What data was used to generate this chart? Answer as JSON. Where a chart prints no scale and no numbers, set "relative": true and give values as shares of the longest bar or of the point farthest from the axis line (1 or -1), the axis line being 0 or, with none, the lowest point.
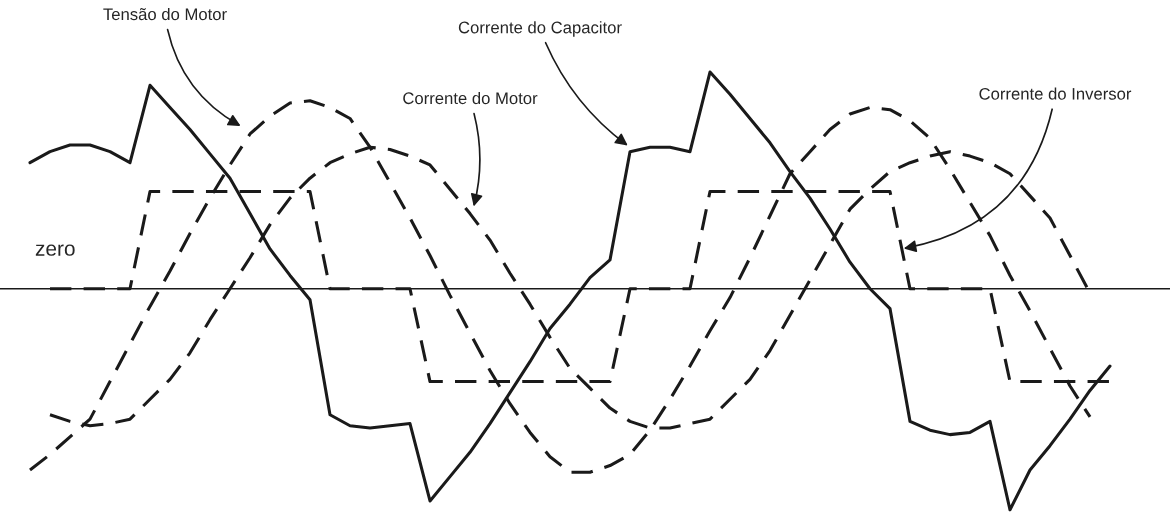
{
  "chart_data": {
    "type": "line",
    "relative": true,
    "categories": [
      null,
      null,
      null,
      null,
      null,
      null,
      null,
      null,
      null,
      null,
      null,
      null,
      null,
      null,
      null,
      null,
      null,
      null,
      null,
      null,
      null,
      null,
      null,
      null,
      null,
      null,
      null,
      null,
      null,
      null,
      null,
      null,
      null,
      null,
      null,
      null,
      null,
      null,
      null,
      null,
      null,
      null,
      null,
      null,
      null,
      null,
      null,
      null,
      null,
      null,
      null,
      null,
      null,
      null,
      null
    ],
    "series": [
      {
        "color": "#1a1a1a",
        "line_style": "solid",
        "values": [
          0.57,
          0.62,
          0.65,
          0.65,
          0.62,
          0.57,
          0.92,
          0.82,
          0.72,
          0.61,
          0.5,
          0.34,
          0.18,
          0.06,
          -0.05,
          -0.57,
          -0.62,
          -0.63,
          -0.62,
          -0.61,
          -0.96,
          -0.85,
          -0.74,
          -0.61,
          -0.47,
          -0.33,
          -0.18,
          -0.07,
          0.05,
          0.13,
          0.62,
          0.64,
          0.64,
          0.62,
          0.98,
          0.88,
          0.77,
          0.66,
          0.53,
          0.41,
          0.27,
          0.12,
          0,
          -0.09,
          -0.6,
          -0.64,
          -0.66,
          -0.65,
          -0.6,
          -1,
          -0.82,
          -0.71,
          -0.59,
          -0.46,
          -0.35
        ]
      },
      {
        "color": "#1a1a1a",
        "line_style": "dashed",
        "values": [
          null,
          0,
          0,
          0,
          0,
          0,
          0.44,
          0.44,
          0.44,
          0.44,
          0.44,
          0.44,
          0.44,
          0.44,
          0.44,
          0,
          0,
          0,
          0,
          0,
          -0.42,
          -0.42,
          -0.42,
          -0.42,
          -0.42,
          -0.42,
          -0.42,
          -0.42,
          -0.42,
          -0.42,
          0,
          0,
          0,
          0,
          0.44,
          0.44,
          0.44,
          0.44,
          0.44,
          0.44,
          0.44,
          0.44,
          0.44,
          0.44,
          0,
          0,
          0,
          0,
          0,
          -0.42,
          -0.42,
          -0.42,
          -0.42,
          -0.42,
          -0.42
        ]
      },
      {
        "color": "#1a1a1a",
        "line_style": "dashed",
        "values": [
          -0.82,
          -0.75,
          -0.67,
          -0.59,
          -0.42,
          -0.25,
          -0.08,
          0.08,
          0.25,
          0.41,
          0.56,
          0.7,
          0.78,
          0.84,
          0.85,
          0.82,
          0.77,
          0.64,
          0.48,
          0.32,
          0.15,
          -0.03,
          -0.2,
          -0.37,
          -0.52,
          -0.65,
          -0.76,
          -0.83,
          -0.83,
          -0.8,
          -0.75,
          -0.64,
          -0.5,
          -0.35,
          -0.19,
          -0.04,
          0.14,
          0.33,
          0.52,
          0.62,
          0.72,
          0.79,
          0.82,
          0.81,
          0.76,
          0.68,
          0.54,
          0.39,
          0.24,
          0.06,
          -0.1,
          -0.27,
          -0.44,
          -0.58,
          null
        ]
      },
      {
        "color": "#1a1a1a",
        "line_style": "dashed",
        "values": [
          null,
          -0.57,
          -0.6,
          -0.62,
          -0.61,
          -0.59,
          -0.5,
          -0.41,
          -0.29,
          -0.14,
          0,
          0.14,
          0.29,
          0.41,
          0.5,
          0.57,
          0.61,
          0.64,
          0.63,
          0.6,
          0.56,
          0.45,
          0.34,
          0.22,
          0.07,
          -0.07,
          -0.22,
          -0.36,
          -0.45,
          -0.54,
          -0.6,
          -0.63,
          -0.63,
          -0.61,
          -0.59,
          -0.5,
          -0.41,
          -0.28,
          -0.12,
          0.04,
          0.2,
          0.36,
          0.45,
          0.53,
          0.57,
          0.6,
          0.62,
          0.6,
          0.57,
          0.52,
          0.42,
          0.32,
          0.15,
          -0.02,
          null
        ]
      }
    ],
    "annotations": [
      "zero",
      "Tensão do Motor",
      "Corrente do Motor",
      "Corrente do Capacitor",
      "Corrente do Inversor"
    ]
  }
}
